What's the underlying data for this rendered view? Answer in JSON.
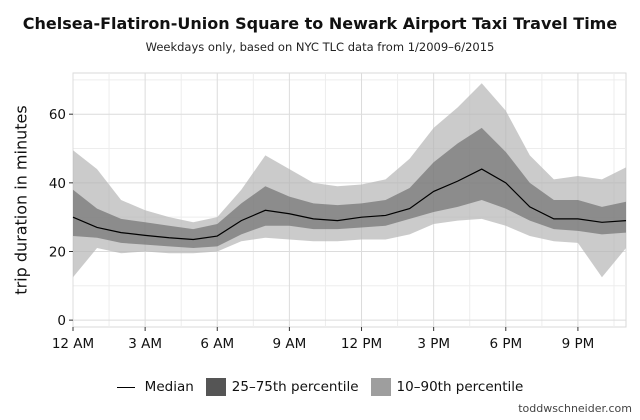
{
  "chart_data": {
    "type": "area",
    "title": "Chelsea-Flatiron-Union Square to Newark Airport Taxi Travel Time",
    "subtitle": "Weekdays only, based on NYC TLC data from 1/2009–6/2015",
    "xlabel": "",
    "ylabel": "trip duration in minutes",
    "x": [
      0,
      1,
      2,
      3,
      4,
      5,
      6,
      7,
      8,
      9,
      10,
      11,
      12,
      13,
      14,
      15,
      16,
      17,
      18,
      19,
      20,
      21,
      22,
      23
    ],
    "xlim": [
      0,
      23
    ],
    "ylim": [
      -2,
      72
    ],
    "x_ticks": [
      {
        "value": 0,
        "label": "12 AM"
      },
      {
        "value": 3,
        "label": "3 AM"
      },
      {
        "value": 6,
        "label": "6 AM"
      },
      {
        "value": 9,
        "label": "9 AM"
      },
      {
        "value": 12,
        "label": "12 PM"
      },
      {
        "value": 15,
        "label": "3 PM"
      },
      {
        "value": 18,
        "label": "6 PM"
      },
      {
        "value": 21,
        "label": "9 PM"
      }
    ],
    "y_ticks": [
      0,
      20,
      40,
      60
    ],
    "grid": true,
    "legend_position": "bottom",
    "series": [
      {
        "name": "Median",
        "kind": "line",
        "color": "#000000",
        "values": [
          30,
          27,
          25.5,
          24.7,
          24,
          23.5,
          24.5,
          29,
          32,
          31,
          29.5,
          29,
          30,
          30.5,
          32.5,
          37.5,
          40.5,
          44,
          40,
          33,
          29.5,
          29.5,
          28.5,
          29
        ]
      },
      {
        "name": "25–75th percentile",
        "kind": "band",
        "color": "#5a5a5a",
        "opacity": 0.55,
        "lower": [
          24.5,
          24,
          22.5,
          22,
          21.5,
          21,
          21.5,
          25,
          27.5,
          27.5,
          26.5,
          26.5,
          27,
          27.5,
          29.5,
          31.5,
          33,
          35,
          32.5,
          29,
          26.5,
          26,
          25,
          25.5
        ],
        "upper": [
          38,
          32.5,
          29.5,
          28.5,
          27.5,
          26.5,
          28,
          34,
          39,
          36,
          34,
          33.5,
          34,
          35,
          38.5,
          46,
          51.5,
          56,
          49,
          40,
          35,
          35,
          33,
          34.5
        ]
      },
      {
        "name": "10–90th percentile",
        "kind": "band",
        "color": "#b5b5b5",
        "opacity": 0.7,
        "lower": [
          12.5,
          21,
          19.5,
          20,
          19.5,
          19.5,
          20,
          23,
          24,
          23.5,
          23,
          23,
          23.5,
          23.5,
          25,
          28,
          29,
          29.5,
          27.5,
          24.5,
          23,
          22.5,
          12.5,
          21
        ],
        "upper": [
          49.5,
          44,
          35,
          32,
          30,
          28.5,
          30,
          38,
          48,
          44,
          40,
          39,
          39.5,
          41,
          47,
          56,
          62,
          69,
          61,
          48,
          41,
          42,
          41,
          44.5
        ]
      }
    ]
  },
  "credit": "toddwschneider.com"
}
